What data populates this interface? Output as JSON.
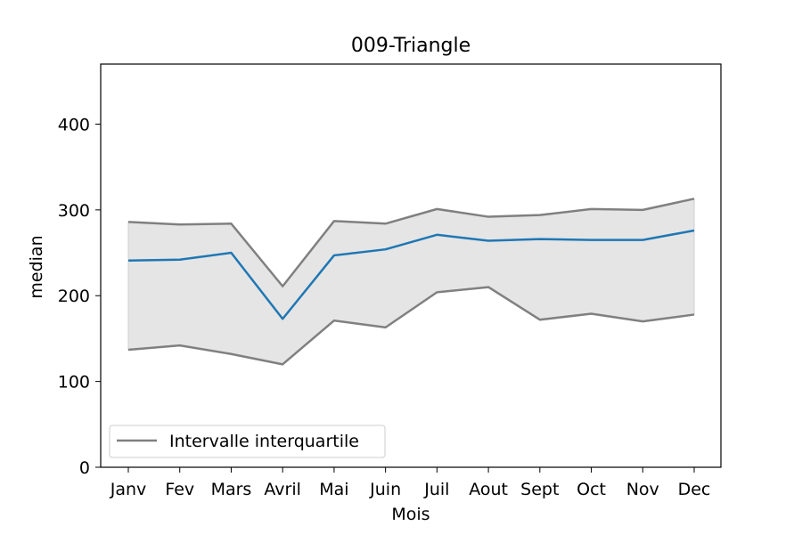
{
  "chart_data": {
    "type": "line",
    "title": "009-Triangle",
    "xlabel": "Mois",
    "ylabel": "median",
    "categories": [
      "Janv",
      "Fev",
      "Mars",
      "Avril",
      "Mai",
      "Juin",
      "Juil",
      "Aout",
      "Sept",
      "Oct",
      "Nov",
      "Dec"
    ],
    "ylim": [
      0,
      470
    ],
    "yticks": [
      0,
      100,
      200,
      300,
      400
    ],
    "grid": false,
    "legend_position": "lower-left",
    "series": [
      {
        "role": "median",
        "color": "#1f77b4",
        "values": [
          241,
          242,
          250,
          173,
          247,
          254,
          271,
          264,
          266,
          265,
          265,
          276
        ]
      },
      {
        "role": "upper-quartile",
        "color": "#808080",
        "values": [
          286,
          283,
          284,
          211,
          287,
          284,
          301,
          292,
          294,
          301,
          300,
          313
        ]
      },
      {
        "role": "lower-quartile",
        "color": "#808080",
        "values": [
          137,
          142,
          132,
          120,
          171,
          163,
          204,
          210,
          172,
          179,
          170,
          178
        ]
      }
    ],
    "band_fill": "#e5e5e5",
    "legend": [
      {
        "label": "Intervalle interquartile",
        "color": "#808080"
      }
    ]
  }
}
